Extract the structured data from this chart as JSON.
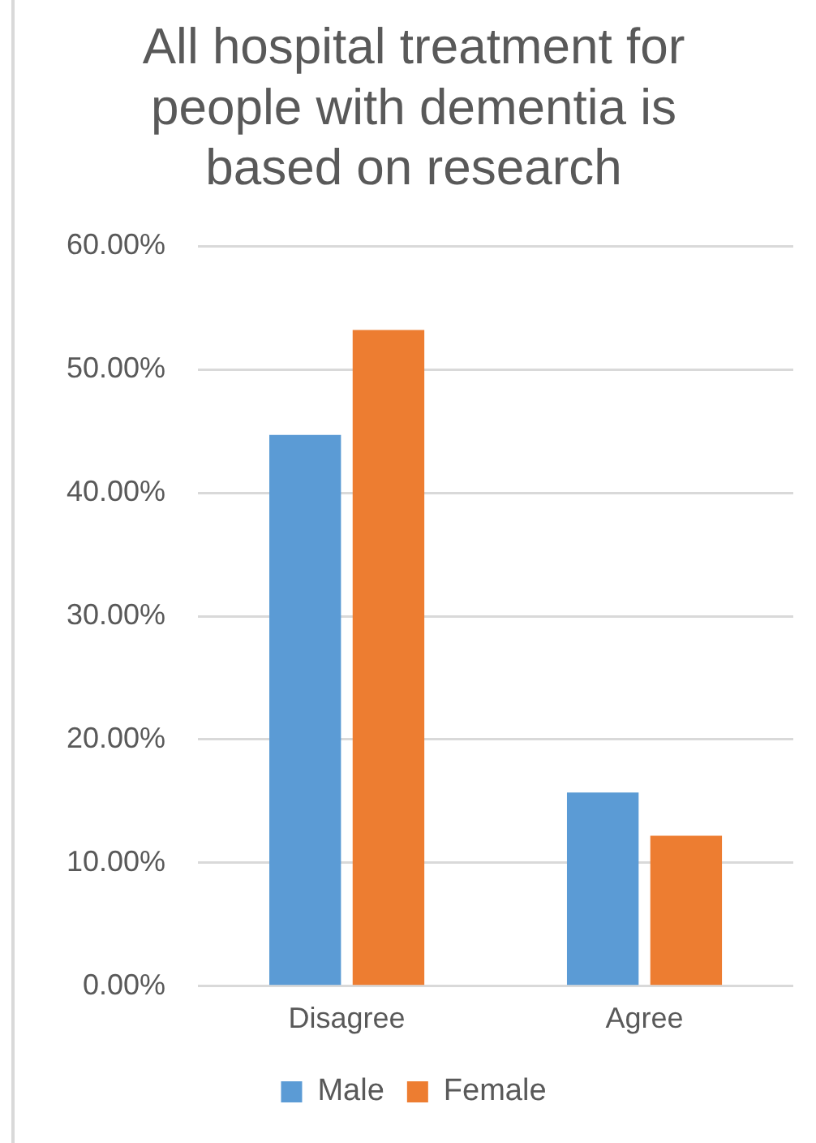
{
  "chart_data": {
    "type": "bar",
    "title": "All hospital treatment for people with dementia is based on research",
    "categories": [
      "Disagree",
      "Agree"
    ],
    "series": [
      {
        "name": "Male",
        "color": "#5b9bd5",
        "values": [
          44.7,
          15.7
        ]
      },
      {
        "name": "Female",
        "color": "#ed7d31",
        "values": [
          53.2,
          12.2
        ]
      }
    ],
    "ylim": [
      0,
      60
    ],
    "yticks": [
      {
        "value": 0,
        "label": "0.00%"
      },
      {
        "value": 10,
        "label": "10.00%"
      },
      {
        "value": 20,
        "label": "20.00%"
      },
      {
        "value": 30,
        "label": "30.00%"
      },
      {
        "value": 40,
        "label": "40.00%"
      },
      {
        "value": 50,
        "label": "50.00%"
      },
      {
        "value": 60,
        "label": "60.00%"
      }
    ],
    "grid": "y",
    "legend": "bottom"
  }
}
